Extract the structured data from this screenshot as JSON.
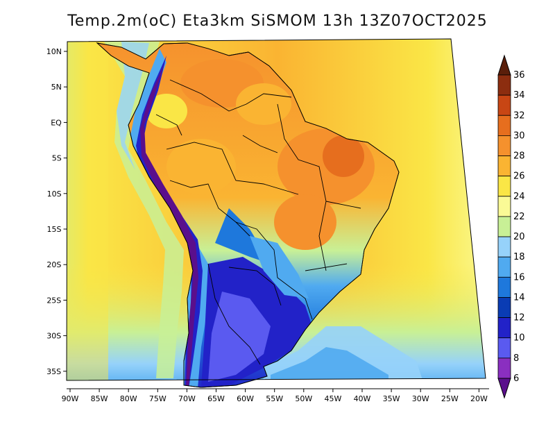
{
  "title": "Temp.2m(oC) Eta3km SiSMOM 13h 13Z07OCT2025",
  "lat_labels": [
    "10N",
    "5N",
    "EQ",
    "5S",
    "10S",
    "15S",
    "20S",
    "25S",
    "30S",
    "35S"
  ],
  "lon_labels": [
    "90W",
    "85W",
    "80W",
    "75W",
    "70W",
    "65W",
    "60W",
    "55W",
    "50W",
    "45W",
    "40W",
    "35W",
    "30W",
    "25W",
    "20W"
  ],
  "chart_data": {
    "type": "heatmap",
    "variable": "Temp.2m(oC)",
    "x_ticks": [
      "90W",
      "85W",
      "80W",
      "75W",
      "70W",
      "65W",
      "60W",
      "55W",
      "50W",
      "45W",
      "40W",
      "35W",
      "30W",
      "25W",
      "20W"
    ],
    "y_ticks": [
      "10N",
      "5N",
      "EQ",
      "5S",
      "10S",
      "15S",
      "20S",
      "25S",
      "30S",
      "35S"
    ],
    "colorbar": {
      "labels": [
        "6",
        "8",
        "10",
        "12",
        "14",
        "16",
        "18",
        "20",
        "22",
        "24",
        "26",
        "28",
        "30",
        "32",
        "34",
        "36"
      ],
      "colors": [
        "#5a0f8c",
        "#8a2fc0",
        "#5a5af0",
        "#2222c8",
        "#0a3cb4",
        "#1e78dc",
        "#50aaf0",
        "#96d2fa",
        "#c8f096",
        "#fafa96",
        "#fae646",
        "#fab432",
        "#f5912d",
        "#e66e1e",
        "#c84614",
        "#8c2d0f",
        "#5a1e0a"
      ]
    }
  }
}
